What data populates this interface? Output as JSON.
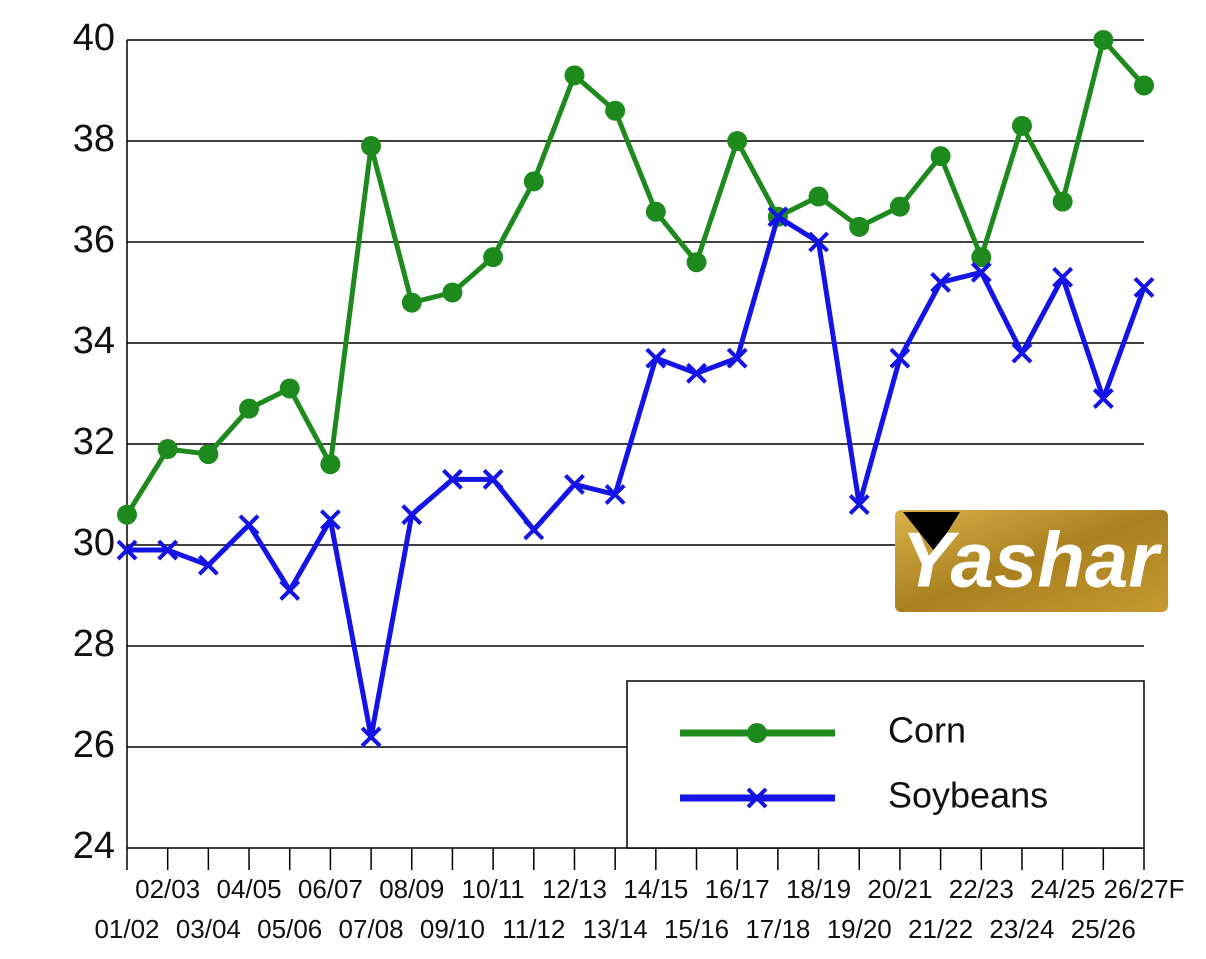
{
  "chart_data": {
    "type": "line",
    "categories": [
      "01/02",
      "02/03",
      "03/04",
      "04/05",
      "05/06",
      "06/07",
      "07/08",
      "08/09",
      "09/10",
      "10/11",
      "11/12",
      "12/13",
      "13/14",
      "14/15",
      "15/16",
      "16/17",
      "17/18",
      "18/19",
      "19/20",
      "20/21",
      "21/22",
      "22/23",
      "23/24",
      "24/25",
      "25/26",
      "26/27F"
    ],
    "series": [
      {
        "name": "Corn",
        "color": "#1e8a1e",
        "marker": "circle",
        "values": [
          30.6,
          31.9,
          31.8,
          32.7,
          33.1,
          31.6,
          37.9,
          34.8,
          35.0,
          35.7,
          37.2,
          39.3,
          38.6,
          36.6,
          35.6,
          38.0,
          36.5,
          36.9,
          36.3,
          36.7,
          37.7,
          35.7,
          38.3,
          36.8,
          40.0,
          39.1
        ]
      },
      {
        "name": "Soybeans",
        "color": "#1414e6",
        "marker": "x",
        "values": [
          29.9,
          29.9,
          29.6,
          30.4,
          29.1,
          30.5,
          26.2,
          30.6,
          31.3,
          31.3,
          30.3,
          31.2,
          31.0,
          33.7,
          33.4,
          33.7,
          36.5,
          36.0,
          30.8,
          33.7,
          35.2,
          35.4,
          33.8,
          35.3,
          32.9,
          35.1
        ]
      }
    ],
    "ylim": [
      24,
      40
    ],
    "yticks": [
      24,
      26,
      28,
      30,
      32,
      34,
      36,
      38,
      40
    ],
    "grid": true,
    "legend": "bottom-right",
    "watermark": "Yashar"
  }
}
